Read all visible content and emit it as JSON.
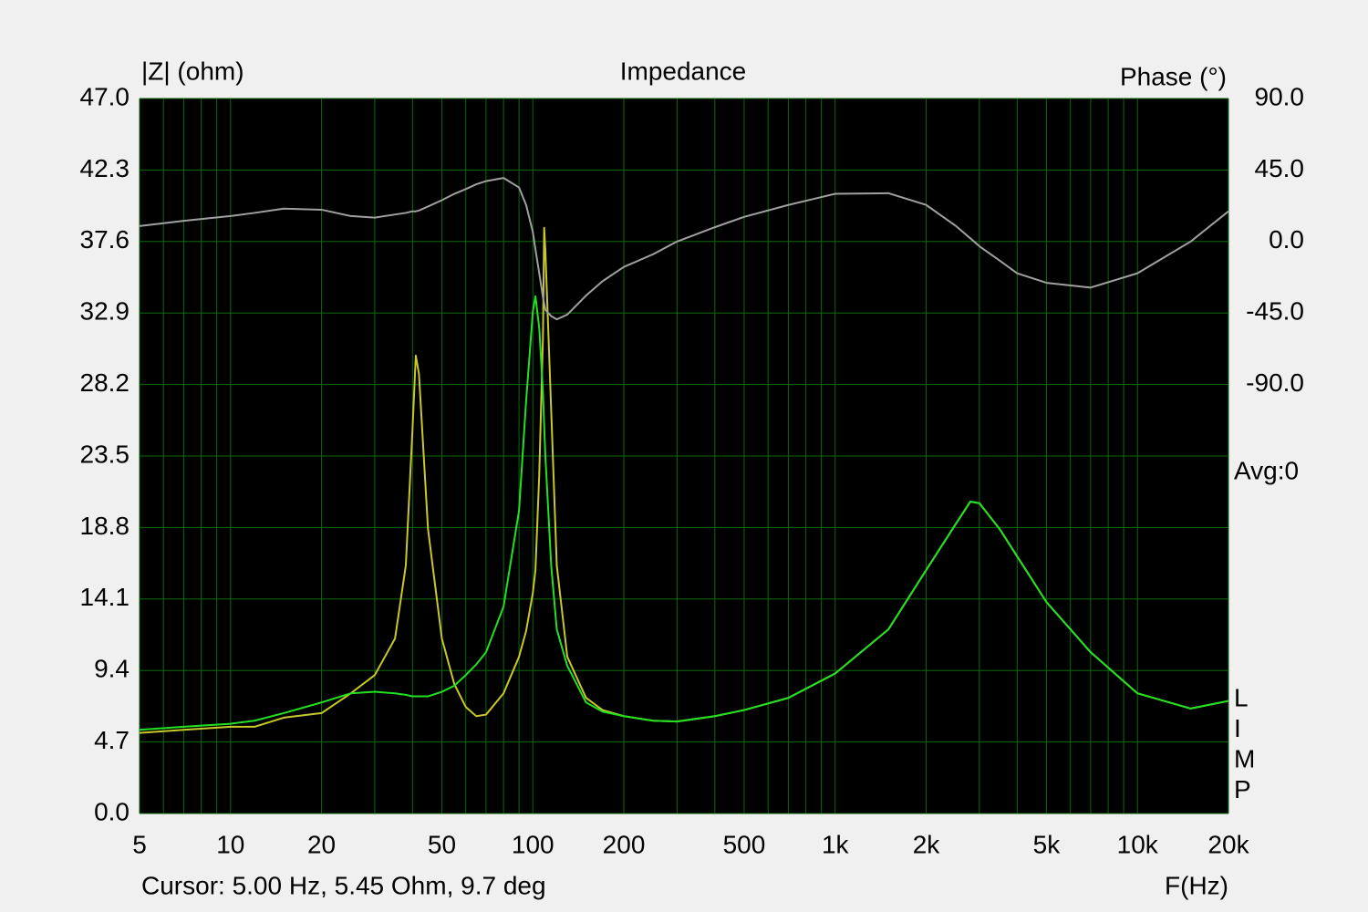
{
  "chart_data": {
    "type": "line",
    "title": "Impedance",
    "ylabel": "|Z| (ohm)",
    "y2label": "Phase (°)",
    "xlabel": "F(Hz)",
    "cursor": "Cursor: 5.00 Hz, 5.45 Ohm, 9.7 deg",
    "avg": "Avg:0",
    "side_letters": [
      "L",
      "I",
      "M",
      "P"
    ],
    "xscale": "log",
    "xlim": [
      5,
      20000
    ],
    "xticks": [
      5,
      10,
      20,
      50,
      100,
      200,
      500,
      {
        "value": 1000,
        "label": "1k"
      },
      {
        "value": 2000,
        "label": "2k"
      },
      {
        "value": 5000,
        "label": "5k"
      },
      {
        "value": 10000,
        "label": "10k"
      },
      {
        "value": 20000,
        "label": "20k"
      }
    ],
    "xgrid": [
      5,
      6,
      7,
      8,
      9,
      10,
      20,
      30,
      40,
      50,
      60,
      70,
      80,
      90,
      100,
      200,
      300,
      400,
      500,
      600,
      700,
      800,
      900,
      1000,
      2000,
      3000,
      4000,
      5000,
      6000,
      7000,
      8000,
      9000,
      10000,
      20000
    ],
    "ylim": [
      0,
      47
    ],
    "yticks": [
      {
        "value": 0,
        "label": "0.0"
      },
      4.7,
      9.4,
      14.1,
      18.8,
      23.5,
      28.2,
      32.9,
      37.6,
      42.3,
      {
        "value": 47,
        "label": "47.0"
      }
    ],
    "y2lim": [
      -360,
      90
    ],
    "y2ticks": [
      {
        "value": 90,
        "label": "90.0"
      },
      {
        "value": 45,
        "label": "45.0"
      },
      {
        "value": 0,
        "label": "0.0"
      },
      {
        "value": -45,
        "label": "-45.0"
      },
      {
        "value": -90,
        "label": "-90.0"
      }
    ],
    "grid": true,
    "x": [
      5,
      7,
      10,
      12,
      15,
      20,
      25,
      30,
      35,
      38,
      40,
      41,
      42,
      45,
      50,
      55,
      60,
      65,
      70,
      80,
      90,
      95,
      100,
      102,
      105,
      108,
      109,
      110,
      115,
      120,
      130,
      150,
      170,
      200,
      250,
      300,
      400,
      500,
      700,
      1000,
      1500,
      2000,
      2500,
      2800,
      3000,
      3500,
      4000,
      5000,
      7000,
      10000,
      15000,
      20000
    ],
    "series": [
      {
        "color": "#c8c828",
        "values": [
          5.3,
          5.5,
          5.7,
          5.7,
          6.3,
          6.6,
          7.9,
          9.1,
          11.5,
          16.3,
          25.3,
          30.1,
          28.9,
          18.7,
          11.5,
          8.5,
          7.0,
          6.4,
          6.5,
          7.9,
          10.3,
          12,
          14.5,
          16,
          22.3,
          31.3,
          38.5,
          37,
          26.5,
          16.3,
          10.3,
          7.6,
          6.8,
          6.4,
          6.1,
          6.05,
          6.4,
          6.8,
          7.6,
          9.2,
          12.1,
          16.0,
          19.0,
          20.5,
          20.4,
          18.7,
          16.9,
          13.9,
          10.6,
          7.9,
          6.9,
          7.4
        ]
      },
      {
        "color": "#22e022",
        "values": [
          5.5,
          5.7,
          5.9,
          6.1,
          6.6,
          7.3,
          7.9,
          8.0,
          7.9,
          7.8,
          7.7,
          7.7,
          7.7,
          7.7,
          8.0,
          8.4,
          9.1,
          9.8,
          10.6,
          13.6,
          19.9,
          27.1,
          33.0,
          34.0,
          31.9,
          27.7,
          25.5,
          23.5,
          16.3,
          12.1,
          9.7,
          7.3,
          6.7,
          6.4,
          6.1,
          6.05,
          6.4,
          6.8,
          7.6,
          9.2,
          12.1,
          16.0,
          19.0,
          20.5,
          20.4,
          18.7,
          16.9,
          13.9,
          10.6,
          7.9,
          6.9,
          7.4
        ]
      },
      {
        "color": "#a0a0a0",
        "axis": "y2",
        "values": [
          9.7,
          13,
          16,
          18,
          20.7,
          20,
          16,
          15,
          17,
          18,
          19,
          19,
          19.5,
          22,
          26,
          30,
          33,
          36,
          38,
          40,
          34,
          23,
          6,
          -5,
          -20,
          -35,
          -39,
          -43,
          -47,
          -49,
          -46,
          -34,
          -25,
          -16,
          -8,
          0,
          9,
          15.5,
          23,
          30,
          30.4,
          23,
          10,
          2,
          -3,
          -12,
          -20,
          -26,
          -29,
          -20,
          0,
          19
        ]
      }
    ]
  }
}
